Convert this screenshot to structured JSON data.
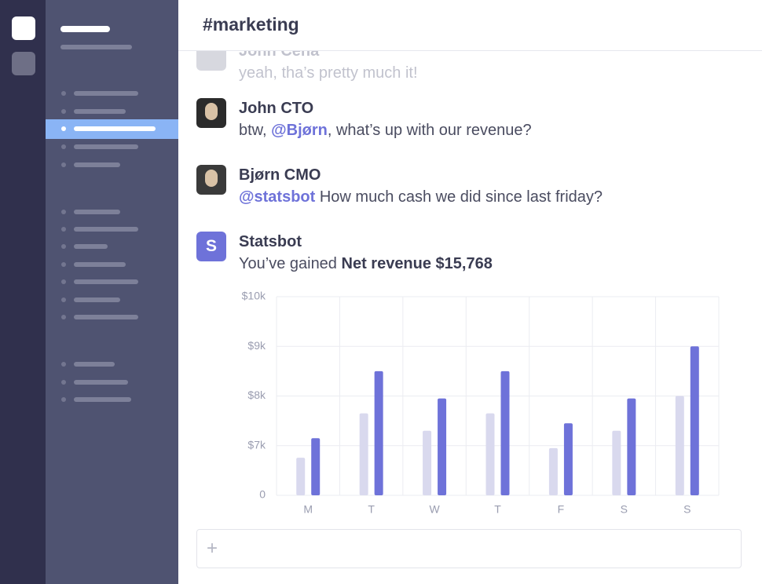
{
  "header": {
    "title": "#marketing"
  },
  "messages": [
    {
      "author": "John Cena",
      "parts": [
        {
          "text": "yeah, tha’s pretty much it!"
        }
      ]
    },
    {
      "author": "John CTO",
      "parts": [
        {
          "text": "btw, "
        },
        {
          "text": "@Bjørn",
          "mention": true
        },
        {
          "text": ", what’s up with our revenue?"
        }
      ]
    },
    {
      "author": "Bjørn CMO",
      "parts": [
        {
          "text": "@statsbot",
          "mention": true
        },
        {
          "text": " How much cash we did since last friday?"
        }
      ]
    },
    {
      "author": "Statsbot",
      "avatar": "S",
      "parts": [
        {
          "text": "You’ve gained "
        },
        {
          "text": "Net revenue $15,768",
          "bold": true
        }
      ]
    }
  ],
  "chart_data": {
    "type": "bar",
    "categories": [
      "M",
      "T",
      "W",
      "T",
      "F",
      "S",
      "S"
    ],
    "series": [
      {
        "color": "#d9d9ee",
        "values": [
          5300,
          7650,
          7300,
          7650,
          6650,
          7300,
          8000
        ]
      },
      {
        "color": "#6e72d9",
        "values": [
          7150,
          8500,
          7950,
          8500,
          7450,
          7950,
          9000
        ]
      }
    ],
    "ylim": [
      0,
      10000
    ],
    "yticks": [
      {
        "value": 0,
        "label": "0"
      },
      {
        "value": 7000,
        "label": "$7k"
      },
      {
        "value": 8000,
        "label": "$8k"
      },
      {
        "value": 9000,
        "label": "$9k"
      },
      {
        "value": 10000,
        "label": "$10k"
      }
    ],
    "grid": true
  },
  "composer": {
    "icon": "+"
  }
}
